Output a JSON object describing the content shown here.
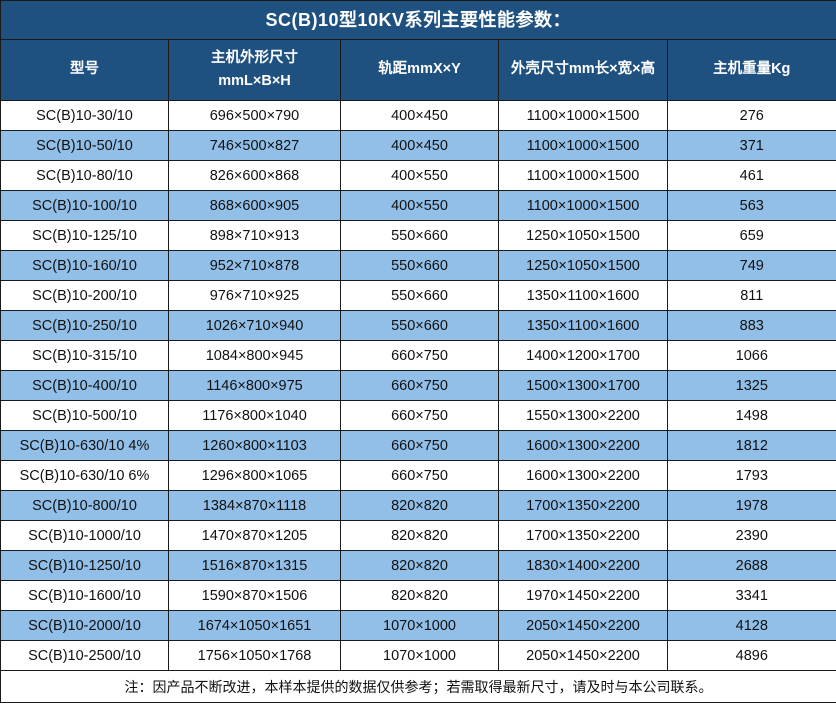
{
  "title": "SC(B)10型10KV系列主要性能参数：",
  "colors": {
    "accent_dark_blue": "#1e5080",
    "row_light_blue": "#92bfe8",
    "border": "#1a1a1a",
    "header_text": "#ffffff",
    "body_text": "#111111"
  },
  "table": {
    "headers": [
      {
        "line1": "型号",
        "line2": ""
      },
      {
        "line1": "主机外形尺寸",
        "line2": "mmL×B×H"
      },
      {
        "line1": "轨距mmX×Y",
        "line2": ""
      },
      {
        "line1": "外壳尺寸mm长×宽×高",
        "line2": ""
      },
      {
        "line1": "主机重量Kg",
        "line2": ""
      }
    ],
    "rows": [
      [
        "SC(B)10-30/10",
        "696×500×790",
        "400×450",
        "1100×1000×1500",
        "276"
      ],
      [
        "SC(B)10-50/10",
        "746×500×827",
        "400×450",
        "1100×1000×1500",
        "371"
      ],
      [
        "SC(B)10-80/10",
        "826×600×868",
        "400×550",
        "1100×1000×1500",
        "461"
      ],
      [
        "SC(B)10-100/10",
        "868×600×905",
        "400×550",
        "1100×1000×1500",
        "563"
      ],
      [
        "SC(B)10-125/10",
        "898×710×913",
        "550×660",
        "1250×1050×1500",
        "659"
      ],
      [
        "SC(B)10-160/10",
        "952×710×878",
        "550×660",
        "1250×1050×1500",
        "749"
      ],
      [
        "SC(B)10-200/10",
        "976×710×925",
        "550×660",
        "1350×1100×1600",
        "811"
      ],
      [
        "SC(B)10-250/10",
        "1026×710×940",
        "550×660",
        "1350×1100×1600",
        "883"
      ],
      [
        "SC(B)10-315/10",
        "1084×800×945",
        "660×750",
        "1400×1200×1700",
        "1066"
      ],
      [
        "SC(B)10-400/10",
        "1146×800×975",
        "660×750",
        "1500×1300×1700",
        "1325"
      ],
      [
        "SC(B)10-500/10",
        "1176×800×1040",
        "660×750",
        "1550×1300×2200",
        "1498"
      ],
      [
        "SC(B)10-630/10 4%",
        "1260×800×1103",
        "660×750",
        "1600×1300×2200",
        "1812"
      ],
      [
        "SC(B)10-630/10 6%",
        "1296×800×1065",
        "660×750",
        "1600×1300×2200",
        "1793"
      ],
      [
        "SC(B)10-800/10",
        "1384×870×1118",
        "820×820",
        "1700×1350×2200",
        "1978"
      ],
      [
        "SC(B)10-1000/10",
        "1470×870×1205",
        "820×820",
        "1700×1350×2200",
        "2390"
      ],
      [
        "SC(B)10-1250/10",
        "1516×870×1315",
        "820×820",
        "1830×1400×2200",
        "2688"
      ],
      [
        "SC(B)10-1600/10",
        "1590×870×1506",
        "820×820",
        "1970×1450×2200",
        "3341"
      ],
      [
        "SC(B)10-2000/10",
        "1674×1050×1651",
        "1070×1000",
        "2050×1450×2200",
        "4128"
      ],
      [
        "SC(B)10-2500/10",
        "1756×1050×1768",
        "1070×1000",
        "2050×1450×2200",
        "4896"
      ]
    ],
    "footnote": "注：因产品不断改进，本样本提供的数据仅供参考；若需取得最新尺寸，请及时与本公司联系。"
  }
}
